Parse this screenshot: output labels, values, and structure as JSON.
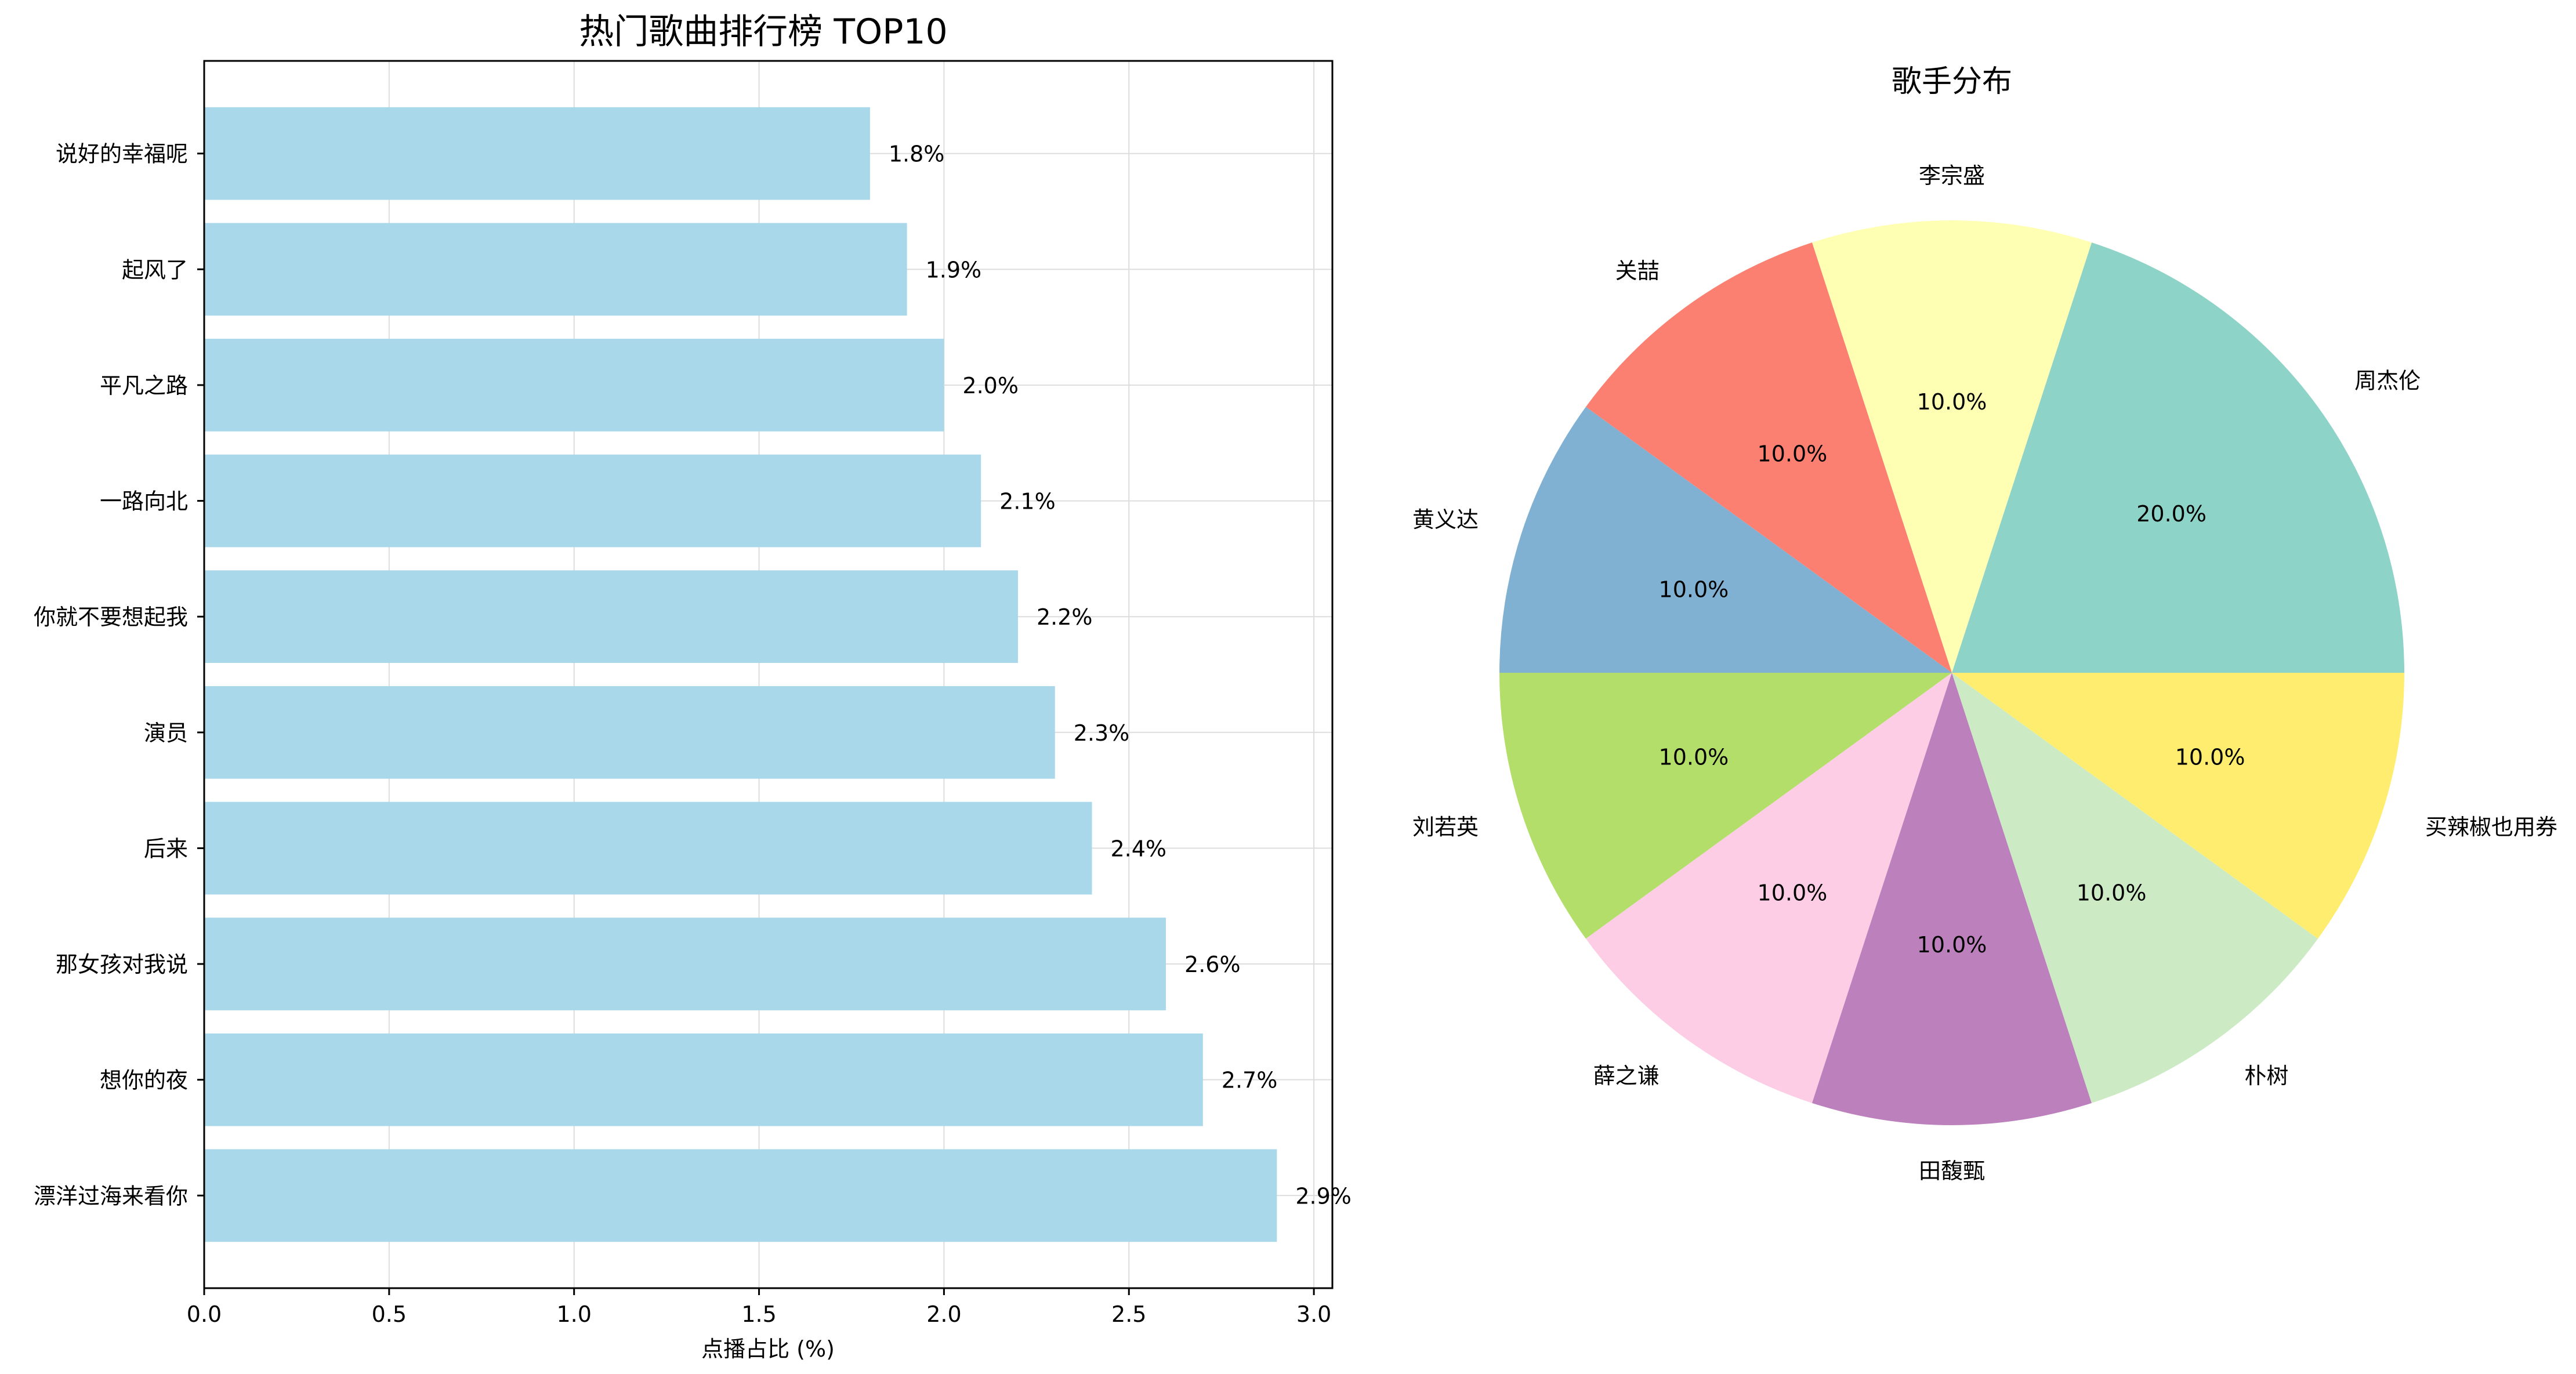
{
  "chart_data": [
    {
      "type": "bar",
      "orientation": "horizontal",
      "title": "热门歌曲排行榜 TOP10",
      "xlabel": "点播占比 (%)",
      "ylabel": "",
      "xlim": [
        0,
        3.05
      ],
      "xticks": [
        "0.0",
        "0.5",
        "1.0",
        "1.5",
        "2.0",
        "2.5",
        "3.0"
      ],
      "grid": true,
      "bar_color": "#a8d8ea",
      "categories": [
        "漂洋过海来看你",
        "想你的夜",
        "那女孩对我说",
        "后来",
        "演员",
        "你就不要想起我",
        "一路向北",
        "平凡之路",
        "起风了",
        "说好的幸福呢"
      ],
      "values": [
        2.9,
        2.7,
        2.6,
        2.4,
        2.3,
        2.2,
        2.1,
        2.0,
        1.9,
        1.8
      ],
      "value_labels": [
        "2.9%",
        "2.7%",
        "2.6%",
        "2.4%",
        "2.3%",
        "2.2%",
        "2.1%",
        "2.0%",
        "1.9%",
        "1.8%"
      ]
    },
    {
      "type": "pie",
      "title": "歌手分布",
      "start_angle": "0",
      "direction": "counterclockwise",
      "labels": [
        "周杰伦",
        "李宗盛",
        "关喆",
        "黄义达",
        "刘若英",
        "薛之谦",
        "田馥甄",
        "朴树",
        "买辣椒也用券"
      ],
      "values": [
        20,
        10,
        10,
        10,
        10,
        10,
        10,
        10,
        10
      ],
      "pct_labels": [
        "20.0%",
        "10.0%",
        "10.0%",
        "10.0%",
        "10.0%",
        "10.0%",
        "10.0%",
        "10.0%",
        "10.0%"
      ],
      "colors": [
        "#8dd3c7",
        "#ffffb3",
        "#fb8072",
        "#80b1d3",
        "#b3de69",
        "#fccde5",
        "#bc80bd",
        "#ccebc5",
        "#ffed6f"
      ]
    }
  ]
}
